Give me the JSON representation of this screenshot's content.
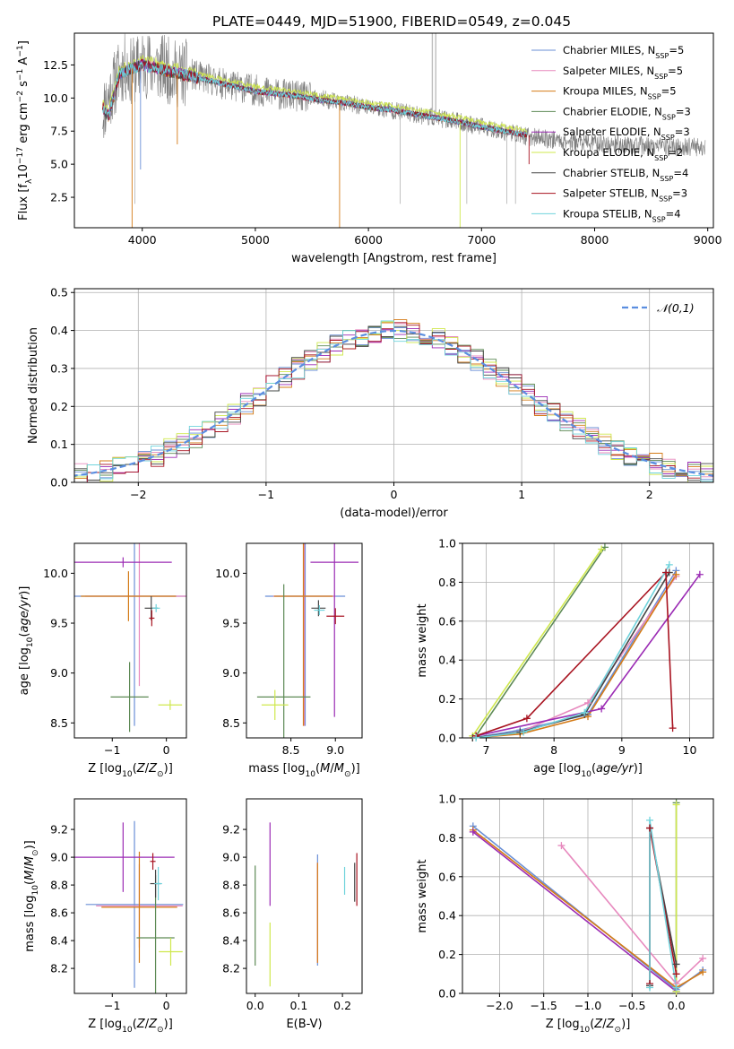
{
  "figure_title": "PLATE=0449, MJD=51900, FIBERID=0549, z=0.045",
  "series_colors": [
    "#6a8fd6",
    "#e789be",
    "#d47b17",
    "#5d8a55",
    "#9b2bb4",
    "#cfe84d",
    "#444444",
    "#a81320",
    "#6fd3dc"
  ],
  "chart_data": [
    {
      "id": "spectrum",
      "type": "line",
      "xlabel": "wavelength [Angstrom, rest frame]",
      "ylabel_parts": [
        "Flux [f",
        "λ",
        "10",
        "−17",
        " erg cm",
        "−2",
        " s",
        "−1",
        " A",
        "−1",
        "]"
      ],
      "xlim": [
        3400,
        9050
      ],
      "ylim": [
        0.2,
        14.9
      ],
      "xticks": [
        "4000",
        "5000",
        "6000",
        "7000",
        "8000",
        "9000"
      ],
      "yticks": [
        "2.5",
        "5.0",
        "7.5",
        "10.0",
        "12.5"
      ],
      "observed": {
        "x": [
          3650,
          3700,
          3750,
          3800,
          3850,
          3900,
          3950,
          4000,
          4100,
          4200,
          4300,
          4400,
          4500,
          4600,
          4700,
          4800,
          4900,
          5000,
          5200,
          5400,
          5600,
          5800,
          6000,
          6200,
          6400,
          6600,
          6800,
          7000,
          7200,
          7400,
          7600,
          7800,
          8000,
          8200,
          8400,
          8600,
          8800,
          8980
        ],
        "y": [
          9.0,
          10.0,
          11.0,
          12.0,
          12.3,
          12.0,
          12.2,
          12.6,
          12.4,
          12.2,
          11.8,
          11.9,
          11.6,
          11.4,
          11.1,
          10.9,
          10.8,
          10.6,
          10.3,
          10.1,
          9.9,
          9.6,
          9.3,
          9.1,
          8.8,
          8.5,
          8.2,
          7.8,
          7.5,
          7.1,
          6.9,
          6.7,
          6.6,
          6.5,
          6.4,
          6.3,
          6.3,
          6.3
        ]
      },
      "model": {
        "x": [
          3650,
          3700,
          3800,
          3900,
          4000,
          4200,
          4400,
          4600,
          4800,
          5000,
          5200,
          5400,
          5600,
          5800,
          6000,
          6200,
          6400,
          6600,
          6800,
          7000,
          7200,
          7400
        ],
        "y": [
          9.3,
          8.6,
          11.8,
          12.2,
          12.5,
          12.1,
          11.7,
          11.3,
          10.9,
          10.5,
          10.3,
          10.1,
          9.8,
          9.6,
          9.3,
          9.1,
          8.8,
          8.5,
          8.2,
          7.8,
          7.5,
          7.2
        ]
      },
      "legend_position": "upper-right",
      "legend": [
        {
          "label": "Chabrier MILES, N",
          "sub": "SSP",
          "suffix": "=5"
        },
        {
          "label": "Salpeter MILES, N",
          "sub": "SSP",
          "suffix": "=5"
        },
        {
          "label": "Kroupa MILES, N",
          "sub": "SSP",
          "suffix": "=5"
        },
        {
          "label": "Chabrier ELODIE, N",
          "sub": "SSP",
          "suffix": "=3"
        },
        {
          "label": "Salpeter ELODIE, N",
          "sub": "SSP",
          "suffix": "=3"
        },
        {
          "label": "Kroupa ELODIE, N",
          "sub": "SSP",
          "suffix": "=2"
        },
        {
          "label": "Chabrier STELIB, N",
          "sub": "SSP",
          "suffix": "=4"
        },
        {
          "label": "Salpeter STELIB, N",
          "sub": "SSP",
          "suffix": "=3"
        },
        {
          "label": "Kroupa STELIB, N",
          "sub": "SSP",
          "suffix": "=4"
        }
      ]
    },
    {
      "id": "residuals",
      "type": "line",
      "xlabel": "(data-model)/error",
      "ylabel": "Normed distribution",
      "xlim": [
        -2.5,
        2.5
      ],
      "ylim": [
        0.0,
        0.51
      ],
      "grid": true,
      "xticks": [
        "−2",
        "−1",
        "0",
        "1",
        "2"
      ],
      "yticks": [
        "0.0",
        "0.1",
        "0.2",
        "0.3",
        "0.4",
        "0.5"
      ],
      "gaussian_legend": "𝒩(0,1)",
      "legend_position": "upper-right",
      "histogram_bin_width": 0.1
    },
    {
      "id": "age-vs-Z",
      "type": "scatter",
      "xlabel": "Z [log",
      "xlabel_sub": "10",
      "xlabel_rest": "(Z/Z",
      "xlabel_end": ")]",
      "ylabel": "age  [log",
      "ylabel_sub": "10",
      "ylabel_rest": "(age/yr)]",
      "xlim": [
        -1.7,
        0.37
      ],
      "ylim": [
        8.35,
        10.3
      ],
      "xticks": [
        "−1",
        "0"
      ],
      "yticks": [
        "8.5",
        "9.0",
        "9.5",
        "10.0"
      ],
      "points": [
        {
          "x": -0.59,
          "y": 9.77,
          "xerr": 1.2,
          "yerr": 1.3,
          "s": 0
        },
        {
          "x": -0.5,
          "y": 9.77,
          "xerr": 1.0,
          "yerr": 0.9,
          "s": 1
        },
        {
          "x": -0.7,
          "y": 9.77,
          "xerr": 0.88,
          "yerr": 0.25,
          "s": 2
        },
        {
          "x": -0.68,
          "y": 8.76,
          "xerr": 0.35,
          "yerr": 0.35,
          "s": 3
        },
        {
          "x": -0.8,
          "y": 10.11,
          "xerr": 0.9,
          "yerr": 0.05,
          "s": 4
        },
        {
          "x": 0.07,
          "y": 8.68,
          "xerr": 0.22,
          "yerr": 0.05,
          "s": 5
        },
        {
          "x": -0.28,
          "y": 9.65,
          "xerr": 0.12,
          "yerr": 0.12,
          "s": 6
        },
        {
          "x": -0.27,
          "y": 9.55,
          "xerr": 0.05,
          "yerr": 0.08,
          "s": 7
        },
        {
          "x": -0.19,
          "y": 9.65,
          "xerr": 0.07,
          "yerr": 0.04,
          "s": 8
        }
      ]
    },
    {
      "id": "age-vs-mass",
      "type": "scatter",
      "xlabel": "mass [log",
      "xlabel_sub": "10",
      "xlabel_rest": "(M/M",
      "xlabel_end": ")]",
      "xlim": [
        8.0,
        9.3
      ],
      "ylim": [
        8.35,
        10.3
      ],
      "xticks": [
        "8.5",
        "9.0"
      ],
      "yticks": [
        "8.5",
        "9.0",
        "9.5",
        "10.0"
      ],
      "points": [
        {
          "x": 8.66,
          "y": 9.77,
          "xerr": 0.45,
          "yerr": 1.3,
          "s": 0
        },
        {
          "x": 8.65,
          "y": 9.77,
          "xerr": 0.35,
          "yerr": 1.3,
          "s": 1
        },
        {
          "x": 8.64,
          "y": 9.77,
          "xerr": 0.33,
          "yerr": 1.3,
          "s": 2
        },
        {
          "x": 8.42,
          "y": 8.76,
          "xerr": 0.3,
          "yerr": 1.13,
          "s": 3
        },
        {
          "x": 8.99,
          "y": 10.11,
          "xerr": 0.27,
          "yerr": 1.55,
          "s": 4
        },
        {
          "x": 8.32,
          "y": 8.68,
          "xerr": 0.15,
          "yerr": 0.15,
          "s": 5
        },
        {
          "x": 8.81,
          "y": 9.65,
          "xerr": 0.08,
          "yerr": 0.08,
          "s": 6
        },
        {
          "x": 9.0,
          "y": 9.57,
          "xerr": 0.1,
          "yerr": 0.08,
          "s": 7
        },
        {
          "x": 8.82,
          "y": 9.63,
          "xerr": 0.06,
          "yerr": 0.05,
          "s": 8
        }
      ]
    },
    {
      "id": "weight-vs-age",
      "type": "line",
      "xlabel": "age  [log",
      "xlabel_sub": "10",
      "xlabel_rest": "(age/yr)]",
      "ylabel": "mass weight",
      "xlim": [
        6.65,
        10.35
      ],
      "ylim": [
        0.0,
        1.0
      ],
      "grid": true,
      "xticks": [
        "7",
        "8",
        "9",
        "10"
      ],
      "yticks": [
        "0.0",
        "0.2",
        "0.4",
        "0.6",
        "0.8",
        "1.0"
      ],
      "series": [
        {
          "s": 0,
          "x": [
            6.8,
            7.5,
            8.5,
            9.8
          ],
          "y": [
            0.0,
            0.04,
            0.12,
            0.86
          ]
        },
        {
          "s": 1,
          "x": [
            6.8,
            7.5,
            8.5,
            9.8
          ],
          "y": [
            0.0,
            0.03,
            0.18,
            0.83
          ]
        },
        {
          "s": 2,
          "x": [
            6.8,
            7.5,
            8.5,
            9.8
          ],
          "y": [
            0.0,
            0.02,
            0.11,
            0.84
          ]
        },
        {
          "s": 3,
          "x": [
            6.85,
            8.75
          ],
          "y": [
            0.01,
            0.98
          ]
        },
        {
          "s": 4,
          "x": [
            6.85,
            8.7,
            10.15
          ],
          "y": [
            0.01,
            0.15,
            0.84
          ]
        },
        {
          "s": 5,
          "x": [
            6.8,
            8.7
          ],
          "y": [
            0.01,
            0.97
          ]
        },
        {
          "s": 6,
          "x": [
            6.8,
            7.5,
            8.45,
            9.7
          ],
          "y": [
            0.0,
            0.03,
            0.12,
            0.85
          ]
        },
        {
          "s": 7,
          "x": [
            6.85,
            7.6,
            9.65,
            9.75
          ],
          "y": [
            0.01,
            0.1,
            0.85,
            0.05
          ]
        },
        {
          "s": 8,
          "x": [
            6.85,
            7.55,
            8.45,
            9.7
          ],
          "y": [
            0.0,
            0.03,
            0.13,
            0.89
          ]
        }
      ]
    },
    {
      "id": "mass-vs-Z",
      "type": "scatter",
      "xlabel": "Z [log",
      "xlabel_sub": "10",
      "xlabel_rest": "(Z/Z",
      "xlabel_end": ")]",
      "ylabel": "mass [log",
      "ylabel_sub": "10",
      "ylabel_rest": "(M/M",
      "ylabel_end": ")]",
      "xlim": [
        -1.7,
        0.37
      ],
      "ylim": [
        8.02,
        9.42
      ],
      "xticks": [
        "−1",
        "0"
      ],
      "yticks": [
        "8.2",
        "8.4",
        "8.6",
        "8.8",
        "9.0",
        "9.2"
      ],
      "points": [
        {
          "x": -0.59,
          "y": 8.66,
          "xerr": 0.9,
          "yerr": 0.6,
          "s": 0
        },
        {
          "x": -0.5,
          "y": 8.65,
          "xerr": 0.8,
          "yerr": 0.3,
          "s": 1
        },
        {
          "x": -0.5,
          "y": 8.64,
          "xerr": 0.7,
          "yerr": 0.4,
          "s": 2
        },
        {
          "x": -0.2,
          "y": 8.42,
          "xerr": 0.35,
          "yerr": 0.45,
          "s": 3
        },
        {
          "x": -0.8,
          "y": 9.0,
          "xerr": 0.95,
          "yerr": 0.25,
          "s": 4
        },
        {
          "x": 0.08,
          "y": 8.32,
          "xerr": 0.22,
          "yerr": 0.1,
          "s": 5
        },
        {
          "x": -0.2,
          "y": 8.81,
          "xerr": 0.1,
          "yerr": 0.1,
          "s": 6
        },
        {
          "x": -0.25,
          "y": 8.97,
          "xerr": 0.05,
          "yerr": 0.06,
          "s": 7
        },
        {
          "x": -0.15,
          "y": 8.81,
          "xerr": 0.07,
          "yerr": 0.12,
          "s": 8
        }
      ]
    },
    {
      "id": "mass-vs-EBV",
      "type": "scatter",
      "xlabel": "E(B-V)",
      "xlim": [
        -0.02,
        0.245
      ],
      "ylim": [
        8.02,
        9.42
      ],
      "xticks": [
        "0.0",
        "0.1",
        "0.2"
      ],
      "yticks": [
        "8.2",
        "8.4",
        "8.6",
        "8.8",
        "9.0",
        "9.2"
      ],
      "points": [
        {
          "x": 0.143,
          "y": 8.62,
          "yerr": 0.4,
          "s": 0
        },
        {
          "x": 0.143,
          "y": 8.6,
          "yerr": 0.36,
          "s": 1
        },
        {
          "x": 0.143,
          "y": 8.6,
          "yerr": 0.36,
          "s": 2
        },
        {
          "x": 0.0,
          "y": 8.58,
          "yerr": 0.36,
          "s": 3
        },
        {
          "x": 0.034,
          "y": 8.95,
          "yerr": 0.3,
          "s": 4
        },
        {
          "x": 0.034,
          "y": 8.3,
          "yerr": 0.23,
          "s": 5
        },
        {
          "x": 0.228,
          "y": 8.82,
          "yerr": 0.14,
          "s": 6
        },
        {
          "x": 0.233,
          "y": 8.84,
          "yerr": 0.19,
          "s": 7
        },
        {
          "x": 0.205,
          "y": 8.83,
          "yerr": 0.1,
          "s": 8
        }
      ]
    },
    {
      "id": "weight-vs-Z",
      "type": "line",
      "xlabel": "Z [log",
      "xlabel_sub": "10",
      "xlabel_rest": "(Z/Z",
      "xlabel_end": ")]",
      "ylabel": "mass weight",
      "xlim": [
        -2.42,
        0.42
      ],
      "ylim": [
        0.0,
        1.0
      ],
      "grid": true,
      "xticks": [
        "−2.0",
        "−1.5",
        "−1.0",
        "−0.5",
        "0.0"
      ],
      "yticks": [
        "0.0",
        "0.2",
        "0.4",
        "0.6",
        "0.8",
        "1.0"
      ],
      "series": [
        {
          "s": 0,
          "x": [
            -2.3,
            0.0,
            0.3
          ],
          "y": [
            0.86,
            0.02,
            0.12
          ]
        },
        {
          "s": 1,
          "x": [
            -1.3,
            0.0,
            0.3
          ],
          "y": [
            0.76,
            0.05,
            0.18
          ]
        },
        {
          "s": 2,
          "x": [
            -2.3,
            0.0,
            0.3
          ],
          "y": [
            0.84,
            0.03,
            0.11
          ]
        },
        {
          "s": 3,
          "x": [
            0.0,
            0.0
          ],
          "y": [
            0.01,
            0.98
          ]
        },
        {
          "s": 4,
          "x": [
            -2.3,
            0.0
          ],
          "y": [
            0.83,
            0.01
          ]
        },
        {
          "s": 5,
          "x": [
            0.0,
            0.0
          ],
          "y": [
            0.01,
            0.97
          ]
        },
        {
          "s": 6,
          "x": [
            -0.3,
            -0.3,
            0.0
          ],
          "y": [
            0.04,
            0.85,
            0.15
          ]
        },
        {
          "s": 7,
          "x": [
            -0.3,
            -0.3,
            0.0
          ],
          "y": [
            0.05,
            0.85,
            0.1
          ]
        },
        {
          "s": 8,
          "x": [
            -0.3,
            -0.3,
            0.0
          ],
          "y": [
            0.03,
            0.89,
            0.03
          ]
        }
      ]
    }
  ]
}
